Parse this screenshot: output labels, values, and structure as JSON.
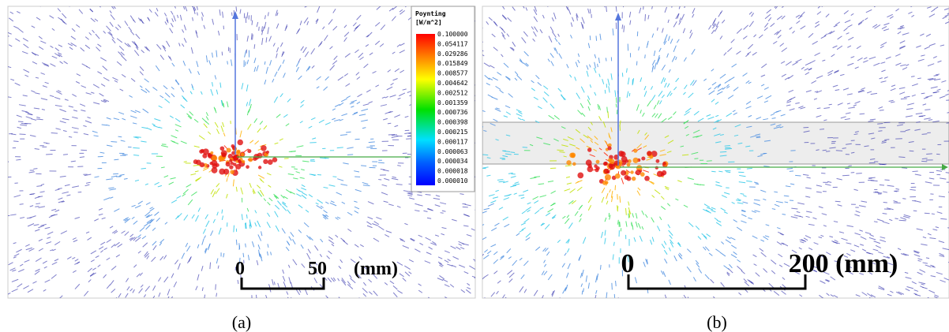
{
  "panel_a": {
    "legend": {
      "title": "Poynting",
      "unit": "[W/m^2]",
      "labels": [
        "0.100000",
        "0.054117",
        "0.029286",
        "0.015849",
        "0.008577",
        "0.004642",
        "0.002512",
        "0.001359",
        "0.000736",
        "0.000398",
        "0.000215",
        "0.000117",
        "0.000063",
        "0.000034",
        "0.000018",
        "0.000010"
      ]
    },
    "scale_bar": {
      "start": "0",
      "end": "50",
      "unit": "(mm)"
    },
    "caption": "(a)"
  },
  "panel_b": {
    "scale_bar": {
      "start": "0",
      "end": "200 (mm)"
    },
    "caption": "(b)"
  }
}
